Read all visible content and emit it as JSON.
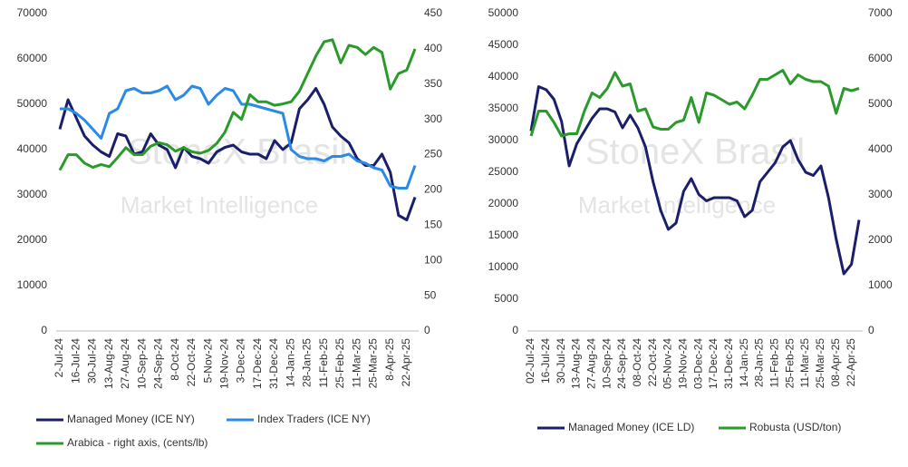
{
  "chart_data": [
    {
      "type": "line",
      "watermark": [
        "StoneX Brasil",
        "Market Intelligence"
      ],
      "categories": [
        "2-Jul-24",
        null,
        "16-Jul-24",
        null,
        "30-Jul-24",
        null,
        "13-Aug-24",
        null,
        "27-Aug-24",
        null,
        "10-Sep-24",
        null,
        "24-Sep-24",
        null,
        "8-Oct-24",
        null,
        "22-Oct-24",
        null,
        "5-Nov-24",
        null,
        "19-Nov-24",
        null,
        "3-Dec-24",
        null,
        "17-Dec-24",
        null,
        "31-Dec-24",
        null,
        "14-Jan-25",
        null,
        "28-Jan-25",
        null,
        "11-Feb-25",
        null,
        "25-Feb-25",
        null,
        "11-Mar-25",
        null,
        "25-Mar-25",
        null,
        "8-Apr-25",
        null,
        "22-Apr-25",
        null
      ],
      "series": [
        {
          "name": "Managed Money (ICE NY)",
          "color": "#1b1f6b",
          "values": [
            44500,
            51000,
            47000,
            43000,
            41000,
            39500,
            38500,
            43500,
            43000,
            39000,
            39500,
            43500,
            41000,
            40000,
            36000,
            40500,
            38500,
            38000,
            37000,
            39500,
            40500,
            41000,
            39500,
            39000,
            39000,
            38000,
            42000,
            40000,
            41500,
            49000,
            51000,
            53500,
            50000,
            45000,
            43000,
            41500,
            38000,
            36500,
            36500,
            39000,
            35000,
            25500,
            24500,
            29500
          ]
        },
        {
          "name": "Index Traders (ICE NY)",
          "color": "#2b8ae6",
          "values": [
            49000,
            49000,
            48000,
            46500,
            44500,
            42500,
            48000,
            49000,
            53000,
            53500,
            52500,
            52500,
            53000,
            54000,
            51000,
            52000,
            54000,
            53500,
            50000,
            52000,
            53500,
            53000,
            50000,
            50000,
            49500,
            49000,
            48500,
            48000,
            40000,
            38500,
            38000,
            38000,
            37500,
            38500,
            38500,
            39000,
            37500,
            37000,
            36000,
            35500,
            32000,
            31500,
            31500,
            36500
          ]
        },
        {
          "name": "Arabica - right axis, (cents/lb)",
          "color": "#2a9a2a",
          "axis": "y2",
          "values": [
            228,
            250,
            250,
            238,
            232,
            236,
            233,
            246,
            260,
            250,
            250,
            262,
            267,
            264,
            255,
            260,
            254,
            252,
            256,
            266,
            282,
            310,
            300,
            335,
            325,
            325,
            320,
            322,
            325,
            340,
            365,
            390,
            410,
            413,
            380,
            405,
            402,
            392,
            402,
            395,
            343,
            365,
            370,
            400
          ]
        }
      ],
      "ylim": [
        0,
        70000
      ],
      "yticks": [
        0,
        10000,
        20000,
        30000,
        40000,
        50000,
        60000,
        70000
      ],
      "y2lim": [
        0,
        450
      ],
      "y2ticks": [
        0,
        50,
        100,
        150,
        200,
        250,
        300,
        350,
        400,
        450
      ],
      "legend": "bottom"
    },
    {
      "type": "line",
      "watermark": [
        "StoneX Brasil",
        "Market Intelligence"
      ],
      "categories": [
        "02-Jul-24",
        null,
        "16-Jul-24",
        null,
        "30-Jul-24",
        null,
        "13-Aug-24",
        null,
        "27-Aug-24",
        null,
        "10-Sep-24",
        null,
        "24-Sep-24",
        null,
        "08-Oct-24",
        null,
        "22-Oct-24",
        null,
        "05-Nov-24",
        null,
        "19-Nov-24",
        null,
        "03-Dec-24",
        null,
        "17-Dec-24",
        null,
        "31-Dec-24",
        null,
        "14-Jan-25",
        null,
        "28-Jan-25",
        null,
        "11-Feb-25",
        null,
        "25-Feb-25",
        null,
        "11-Mar-25",
        null,
        "25-Mar-25",
        null,
        "08-Apr-25",
        null,
        "22-Apr-25",
        null
      ],
      "series": [
        {
          "name": "Managed Money (ICE LD)",
          "color": "#1b1f6b",
          "values": [
            31500,
            38500,
            38000,
            36500,
            33000,
            26000,
            29500,
            31500,
            33500,
            35000,
            35000,
            34500,
            32000,
            34000,
            32000,
            29000,
            23500,
            19000,
            16000,
            17000,
            22000,
            24000,
            21500,
            20500,
            21000,
            21000,
            21000,
            20500,
            18000,
            19000,
            23500,
            25000,
            26500,
            29000,
            30000,
            27000,
            25000,
            24500,
            26000,
            21000,
            14500,
            9000,
            10500,
            17500
          ]
        },
        {
          "name": "Robusta (USD/ton)",
          "color": "#2a9a2a",
          "axis": "y2",
          "values": [
            4300,
            4850,
            4850,
            4600,
            4300,
            4350,
            4350,
            4850,
            5250,
            5150,
            5350,
            5700,
            5400,
            5450,
            4850,
            4900,
            4500,
            4450,
            4450,
            4600,
            4650,
            5150,
            4600,
            5250,
            5200,
            5100,
            5000,
            5050,
            4900,
            5200,
            5550,
            5550,
            5650,
            5750,
            5450,
            5650,
            5550,
            5500,
            5500,
            5400,
            4800,
            5350,
            5300,
            5350
          ]
        }
      ],
      "ylim": [
        0,
        50000
      ],
      "yticks": [
        0,
        5000,
        10000,
        15000,
        20000,
        25000,
        30000,
        35000,
        40000,
        45000,
        50000
      ],
      "y2lim": [
        0,
        7000
      ],
      "y2ticks": [
        0,
        1000,
        2000,
        3000,
        4000,
        5000,
        6000,
        7000
      ],
      "legend": "bottom"
    }
  ]
}
